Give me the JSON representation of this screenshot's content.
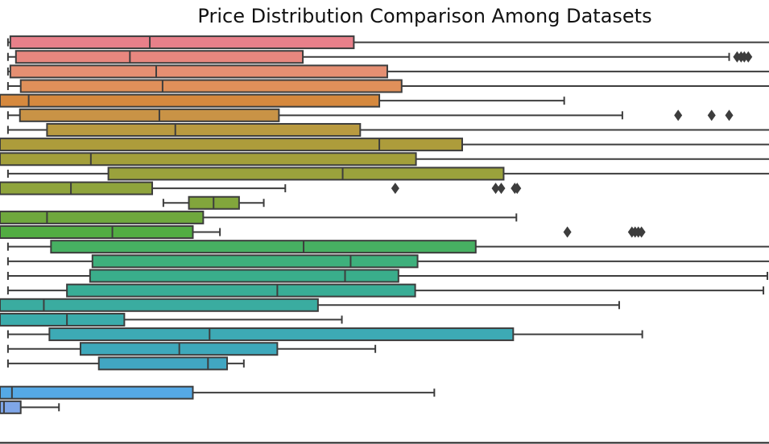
{
  "chart_data": {
    "type": "boxplot",
    "orientation": "horizontal",
    "title": "Price Distribution Comparison Among Datasets",
    "xlabel": "",
    "ylabel": "",
    "grid": false,
    "xlim": [
      -10,
      955
    ],
    "boxes": [
      {
        "wlo": 0,
        "q1": 3,
        "med": 178,
        "q3": 434,
        "whi": 960,
        "fliers": [],
        "color": "#e8808a"
      },
      {
        "wlo": 0,
        "q1": 10,
        "med": 153,
        "q3": 370,
        "whi": 905,
        "fliers": [
          915,
          920,
          924,
          929
        ],
        "color": "#e8877f"
      },
      {
        "wlo": 0,
        "q1": 3,
        "med": 186,
        "q3": 476,
        "whi": 960,
        "fliers": [],
        "color": "#e58f72"
      },
      {
        "wlo": 0,
        "q1": 16,
        "med": 194,
        "q3": 494,
        "whi": 960,
        "fliers": [],
        "color": "#e0905a"
      },
      {
        "wlo": -10,
        "q1": -10,
        "med": 26,
        "q3": 466,
        "whi": 698,
        "fliers": [],
        "color": "#d6893e"
      },
      {
        "wlo": 0,
        "q1": 15,
        "med": 190,
        "q3": 340,
        "whi": 771,
        "fliers": [
          841,
          883,
          905
        ],
        "color": "#c99346"
      },
      {
        "wlo": 0,
        "q1": 49,
        "med": 210,
        "q3": 442,
        "whi": 960,
        "fliers": [],
        "color": "#b99a40"
      },
      {
        "wlo": -10,
        "q1": -10,
        "med": 466,
        "q3": 570,
        "whi": 960,
        "fliers": [],
        "color": "#ad9c3b"
      },
      {
        "wlo": -10,
        "q1": -10,
        "med": 104,
        "q3": 512,
        "whi": 960,
        "fliers": [],
        "color": "#a39f3b"
      },
      {
        "wlo": 0,
        "q1": 126,
        "med": 420,
        "q3": 622,
        "whi": 960,
        "fliers": [],
        "color": "#9aa23c"
      },
      {
        "wlo": -10,
        "q1": -10,
        "med": 79,
        "q3": 181,
        "whi": 348,
        "fliers": [
          486,
          612,
          619,
          636,
          639
        ],
        "color": "#8fa43c"
      },
      {
        "wlo": 195,
        "q1": 227,
        "med": 258,
        "q3": 290,
        "whi": 321,
        "fliers": [],
        "color": "#82a63c"
      },
      {
        "wlo": -10,
        "q1": -10,
        "med": 49,
        "q3": 245,
        "whi": 638,
        "fliers": [],
        "color": "#6fa83d"
      },
      {
        "wlo": -10,
        "q1": -10,
        "med": 131,
        "q3": 232,
        "whi": 266,
        "fliers": [
          702,
          783,
          787,
          791,
          795
        ],
        "color": "#52ad42"
      },
      {
        "wlo": 0,
        "q1": 54,
        "med": 371,
        "q3": 587,
        "whi": 960,
        "fliers": [],
        "color": "#47b062"
      },
      {
        "wlo": 0,
        "q1": 106,
        "med": 430,
        "q3": 514,
        "whi": 960,
        "fliers": [],
        "color": "#3eb07c"
      },
      {
        "wlo": 0,
        "q1": 103,
        "med": 423,
        "q3": 490,
        "whi": 953,
        "fliers": [],
        "color": "#3aae8b"
      },
      {
        "wlo": 0,
        "q1": 74,
        "med": 338,
        "q3": 511,
        "whi": 948,
        "fliers": [],
        "color": "#39ad96"
      },
      {
        "wlo": -10,
        "q1": -10,
        "med": 45,
        "q3": 389,
        "whi": 767,
        "fliers": [],
        "color": "#3aaca0"
      },
      {
        "wlo": -10,
        "q1": -10,
        "med": 74,
        "q3": 146,
        "whi": 419,
        "fliers": [],
        "color": "#3babab"
      },
      {
        "wlo": 0,
        "q1": 52,
        "med": 253,
        "q3": 634,
        "whi": 796,
        "fliers": [],
        "color": "#3daab5"
      },
      {
        "wlo": 0,
        "q1": 91,
        "med": 215,
        "q3": 338,
        "whi": 461,
        "fliers": [],
        "color": "#3ea8bb"
      },
      {
        "wlo": 0,
        "q1": 114,
        "med": 251,
        "q3": 275,
        "whi": 296,
        "fliers": [],
        "color": "#41a6c2"
      },
      {
        "empty": true
      },
      {
        "wlo": -10,
        "q1": -10,
        "med": 5,
        "q3": 232,
        "whi": 535,
        "fliers": [],
        "color": "#55a9e6"
      },
      {
        "wlo": -10,
        "q1": -10,
        "med": -5,
        "q3": 16,
        "whi": 64,
        "fliers": [],
        "color": "#7fa6e8"
      }
    ]
  }
}
